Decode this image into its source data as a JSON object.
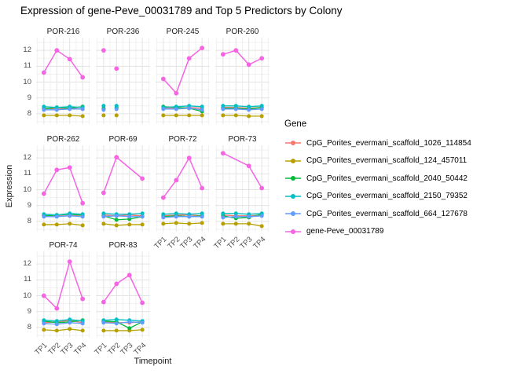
{
  "title": "Expression of gene-Peve_00031789 and Top 5 Predictors by Colony",
  "axes": {
    "x_title": "Timepoint",
    "y_title": "Expression",
    "x_ticks": [
      "TP1",
      "TP2",
      "TP3",
      "TP4"
    ],
    "y_ticks": [
      8,
      9,
      10,
      11,
      12
    ]
  },
  "legend": {
    "title": "Gene",
    "position": "right"
  },
  "colors": {
    "grid_major": "#e3e3e3",
    "grid_minor": "#f1f1f1",
    "tick_text": "#4d4d4d",
    "text": "#1a1a1a"
  },
  "chart_data": {
    "type": "line",
    "x": [
      "TP1",
      "TP2",
      "TP3",
      "TP4"
    ],
    "xlabel": "Timepoint",
    "ylabel": "Expression",
    "ylim": [
      7.35,
      12.8
    ],
    "y_major_gridlines": [
      8,
      9,
      10,
      11,
      12
    ],
    "y_minor_gridlines": [
      7.5,
      8.5,
      9.5,
      10.5,
      11.5,
      12.5
    ],
    "grid": true,
    "legend_position": "right",
    "genes": [
      {
        "name": "CpG_Porites_evermani_scaffold_1026_114854",
        "color": "#F8766D"
      },
      {
        "name": "CpG_Porites_evermani_scaffold_124_457011",
        "color": "#B79F00"
      },
      {
        "name": "CpG_Porites_evermani_scaffold_2040_50442",
        "color": "#00BA38"
      },
      {
        "name": "CpG_Porites_evermani_scaffold_2150_79352",
        "color": "#00BFC4"
      },
      {
        "name": "CpG_Porites_evermani_scaffold_664_127678",
        "color": "#619CFF"
      },
      {
        "name": "gene-Peve_00031789",
        "color": "#F564E3"
      }
    ],
    "facets": [
      {
        "colony": "POR-216",
        "row": 0,
        "col": 0,
        "lines": true,
        "x_labels": false,
        "values": [
          [
            8.35,
            8.3,
            8.35,
            8.3
          ],
          [
            7.9,
            7.9,
            7.9,
            7.85
          ],
          [
            8.3,
            8.4,
            8.35,
            8.45
          ],
          [
            8.45,
            8.4,
            8.45,
            8.4
          ],
          [
            8.25,
            8.25,
            8.3,
            8.3
          ],
          [
            10.6,
            12.0,
            11.45,
            10.3
          ]
        ]
      },
      {
        "colony": "POR-236",
        "row": 0,
        "col": 1,
        "lines": false,
        "x_labels": false,
        "values": [
          [
            8.35,
            8.35,
            null,
            null
          ],
          [
            7.9,
            7.9,
            null,
            null
          ],
          [
            8.3,
            8.4,
            null,
            null
          ],
          [
            8.5,
            8.5,
            null,
            null
          ],
          [
            8.25,
            8.3,
            null,
            null
          ],
          [
            12.0,
            10.85,
            null,
            null
          ]
        ]
      },
      {
        "colony": "POR-245",
        "row": 0,
        "col": 2,
        "lines": true,
        "x_labels": false,
        "values": [
          [
            8.35,
            8.35,
            8.4,
            8.35
          ],
          [
            7.9,
            7.9,
            7.9,
            7.9
          ],
          [
            8.45,
            8.4,
            8.35,
            8.15
          ],
          [
            8.4,
            8.45,
            8.5,
            8.45
          ],
          [
            8.3,
            8.3,
            8.35,
            8.25
          ],
          [
            10.2,
            9.3,
            11.5,
            12.15
          ]
        ]
      },
      {
        "colony": "POR-260",
        "row": 0,
        "col": 3,
        "lines": true,
        "x_labels": false,
        "values": [
          [
            8.4,
            8.4,
            8.35,
            8.4
          ],
          [
            7.9,
            7.9,
            7.85,
            7.85
          ],
          [
            8.35,
            8.35,
            8.3,
            8.4
          ],
          [
            8.5,
            8.5,
            8.45,
            8.5
          ],
          [
            8.3,
            8.3,
            8.25,
            8.3
          ],
          [
            11.75,
            12.0,
            11.1,
            11.5
          ]
        ]
      },
      {
        "colony": "POR-262",
        "row": 1,
        "col": 0,
        "lines": true,
        "x_labels": false,
        "values": [
          [
            8.35,
            8.35,
            8.35,
            8.4
          ],
          [
            7.8,
            7.8,
            7.85,
            7.75
          ],
          [
            8.35,
            8.4,
            8.45,
            8.4
          ],
          [
            8.45,
            8.4,
            8.5,
            8.45
          ],
          [
            8.3,
            8.3,
            8.35,
            8.3
          ],
          [
            9.75,
            11.25,
            11.4,
            9.15
          ]
        ]
      },
      {
        "colony": "POR-69",
        "row": 1,
        "col": 1,
        "lines": true,
        "x_labels": false,
        "values": [
          [
            8.4,
            8.35,
            8.4,
            8.35
          ],
          [
            7.85,
            7.75,
            7.8,
            7.8
          ],
          [
            8.35,
            8.1,
            8.15,
            8.3
          ],
          [
            8.5,
            8.45,
            8.45,
            8.5
          ],
          [
            8.3,
            8.35,
            8.3,
            8.3
          ],
          [
            9.8,
            12.05,
            null,
            10.7
          ]
        ]
      },
      {
        "colony": "POR-72",
        "row": 1,
        "col": 2,
        "lines": true,
        "x_labels": true,
        "values": [
          [
            8.35,
            8.4,
            8.4,
            8.35
          ],
          [
            7.85,
            7.9,
            7.85,
            7.9
          ],
          [
            8.3,
            8.35,
            8.3,
            8.35
          ],
          [
            8.45,
            8.5,
            8.45,
            8.5
          ],
          [
            8.25,
            8.3,
            8.3,
            8.3
          ],
          [
            9.5,
            10.6,
            12.0,
            10.1
          ]
        ]
      },
      {
        "colony": "POR-73",
        "row": 1,
        "col": 3,
        "lines": true,
        "x_labels": true,
        "values": [
          [
            8.4,
            8.35,
            8.35,
            8.4
          ],
          [
            7.85,
            7.85,
            7.85,
            7.7
          ],
          [
            8.35,
            8.2,
            8.25,
            8.45
          ],
          [
            8.5,
            8.5,
            8.45,
            8.5
          ],
          [
            8.25,
            8.3,
            8.3,
            8.35
          ],
          [
            12.3,
            null,
            11.5,
            10.1
          ]
        ]
      },
      {
        "colony": "POR-74",
        "row": 2,
        "col": 0,
        "lines": true,
        "x_labels": true,
        "values": [
          [
            8.3,
            8.35,
            8.45,
            8.3
          ],
          [
            7.85,
            7.8,
            7.9,
            7.8
          ],
          [
            8.4,
            8.3,
            8.35,
            8.45
          ],
          [
            8.45,
            8.4,
            8.5,
            8.4
          ],
          [
            8.25,
            8.2,
            8.3,
            8.25
          ],
          [
            10.0,
            9.2,
            12.15,
            9.8
          ]
        ]
      },
      {
        "colony": "POR-83",
        "row": 2,
        "col": 1,
        "lines": true,
        "x_labels": true,
        "values": [
          [
            8.35,
            8.3,
            8.3,
            8.35
          ],
          [
            7.8,
            7.8,
            7.8,
            7.85
          ],
          [
            8.4,
            8.35,
            7.95,
            8.35
          ],
          [
            8.45,
            8.5,
            8.45,
            8.4
          ],
          [
            8.3,
            8.25,
            8.35,
            8.3
          ],
          [
            9.6,
            10.75,
            11.3,
            9.55
          ]
        ]
      }
    ]
  }
}
